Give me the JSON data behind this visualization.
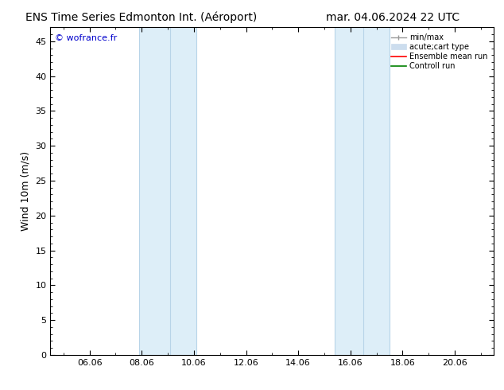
{
  "title_left": "ENS Time Series Edmonton Int. (Aéroport)",
  "title_right": "mar. 04.06.2024 22 UTC",
  "ylabel": "Wind 10m (m/s)",
  "watermark": "© wofrance.fr",
  "ylim": [
    0,
    47
  ],
  "yticks": [
    0,
    5,
    10,
    15,
    20,
    25,
    30,
    35,
    40,
    45
  ],
  "xtick_labels": [
    "06.06",
    "08.06",
    "10.06",
    "12.06",
    "14.06",
    "16.06",
    "18.06",
    "20.06"
  ],
  "xtick_positions": [
    6,
    8,
    10,
    12,
    14,
    16,
    18,
    20
  ],
  "xmin": 4.5,
  "xmax": 21.5,
  "shaded_regions": [
    {
      "xmin": 7.9,
      "xmax": 9.1
    },
    {
      "xmin": 9.1,
      "xmax": 10.1
    },
    {
      "xmin": 15.4,
      "xmax": 16.5
    },
    {
      "xmin": 16.5,
      "xmax": 17.5
    }
  ],
  "shade_color": "#ddeef8",
  "shade_divider_color": "#b8d4e8",
  "legend_entries": [
    {
      "label": "min/max",
      "color": "#999999"
    },
    {
      "label": "acute;cart type",
      "color": "#ccddee"
    },
    {
      "label": "Ensemble mean run",
      "color": "red"
    },
    {
      "label": "Controll run",
      "color": "green"
    }
  ],
  "bg_color": "#ffffff",
  "plot_bg_color": "#ffffff",
  "border_color": "#000000",
  "watermark_color": "#0000cc",
  "title_fontsize": 10,
  "label_fontsize": 9,
  "tick_fontsize": 8,
  "watermark_fontsize": 8
}
